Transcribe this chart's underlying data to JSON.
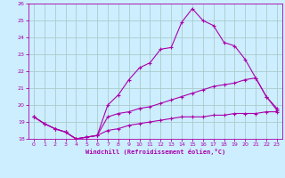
{
  "xlabel": "Windchill (Refroidissement éolien,°C)",
  "xlim": [
    -0.5,
    23.5
  ],
  "ylim": [
    18,
    26
  ],
  "xticks": [
    0,
    1,
    2,
    3,
    4,
    5,
    6,
    7,
    8,
    9,
    10,
    11,
    12,
    13,
    14,
    15,
    16,
    17,
    18,
    19,
    20,
    21,
    22,
    23
  ],
  "yticks": [
    18,
    19,
    20,
    21,
    22,
    23,
    24,
    25,
    26
  ],
  "background_color": "#cceeff",
  "grid_color": "#aacccc",
  "line_color": "#aa00aa",
  "x": [
    0,
    1,
    2,
    3,
    4,
    5,
    6,
    7,
    8,
    9,
    10,
    11,
    12,
    13,
    14,
    15,
    16,
    17,
    18,
    19,
    20,
    21,
    22,
    23
  ],
  "y_top": [
    19.3,
    18.9,
    18.6,
    18.4,
    18.0,
    18.1,
    18.2,
    20.0,
    20.6,
    21.5,
    22.2,
    22.5,
    23.3,
    23.4,
    24.9,
    25.7,
    25.0,
    24.7,
    23.7,
    23.5,
    22.7,
    21.6,
    20.5,
    19.8
  ],
  "y_mid": [
    19.3,
    18.9,
    18.6,
    18.4,
    18.0,
    18.1,
    18.2,
    19.3,
    19.5,
    19.6,
    19.8,
    19.9,
    20.1,
    20.3,
    20.5,
    20.7,
    20.9,
    21.1,
    21.2,
    21.3,
    21.5,
    21.6,
    20.5,
    19.7
  ],
  "y_bot": [
    19.3,
    18.9,
    18.6,
    18.4,
    18.0,
    18.1,
    18.2,
    18.5,
    18.6,
    18.8,
    18.9,
    19.0,
    19.1,
    19.2,
    19.3,
    19.3,
    19.3,
    19.4,
    19.4,
    19.5,
    19.5,
    19.5,
    19.6,
    19.6
  ]
}
